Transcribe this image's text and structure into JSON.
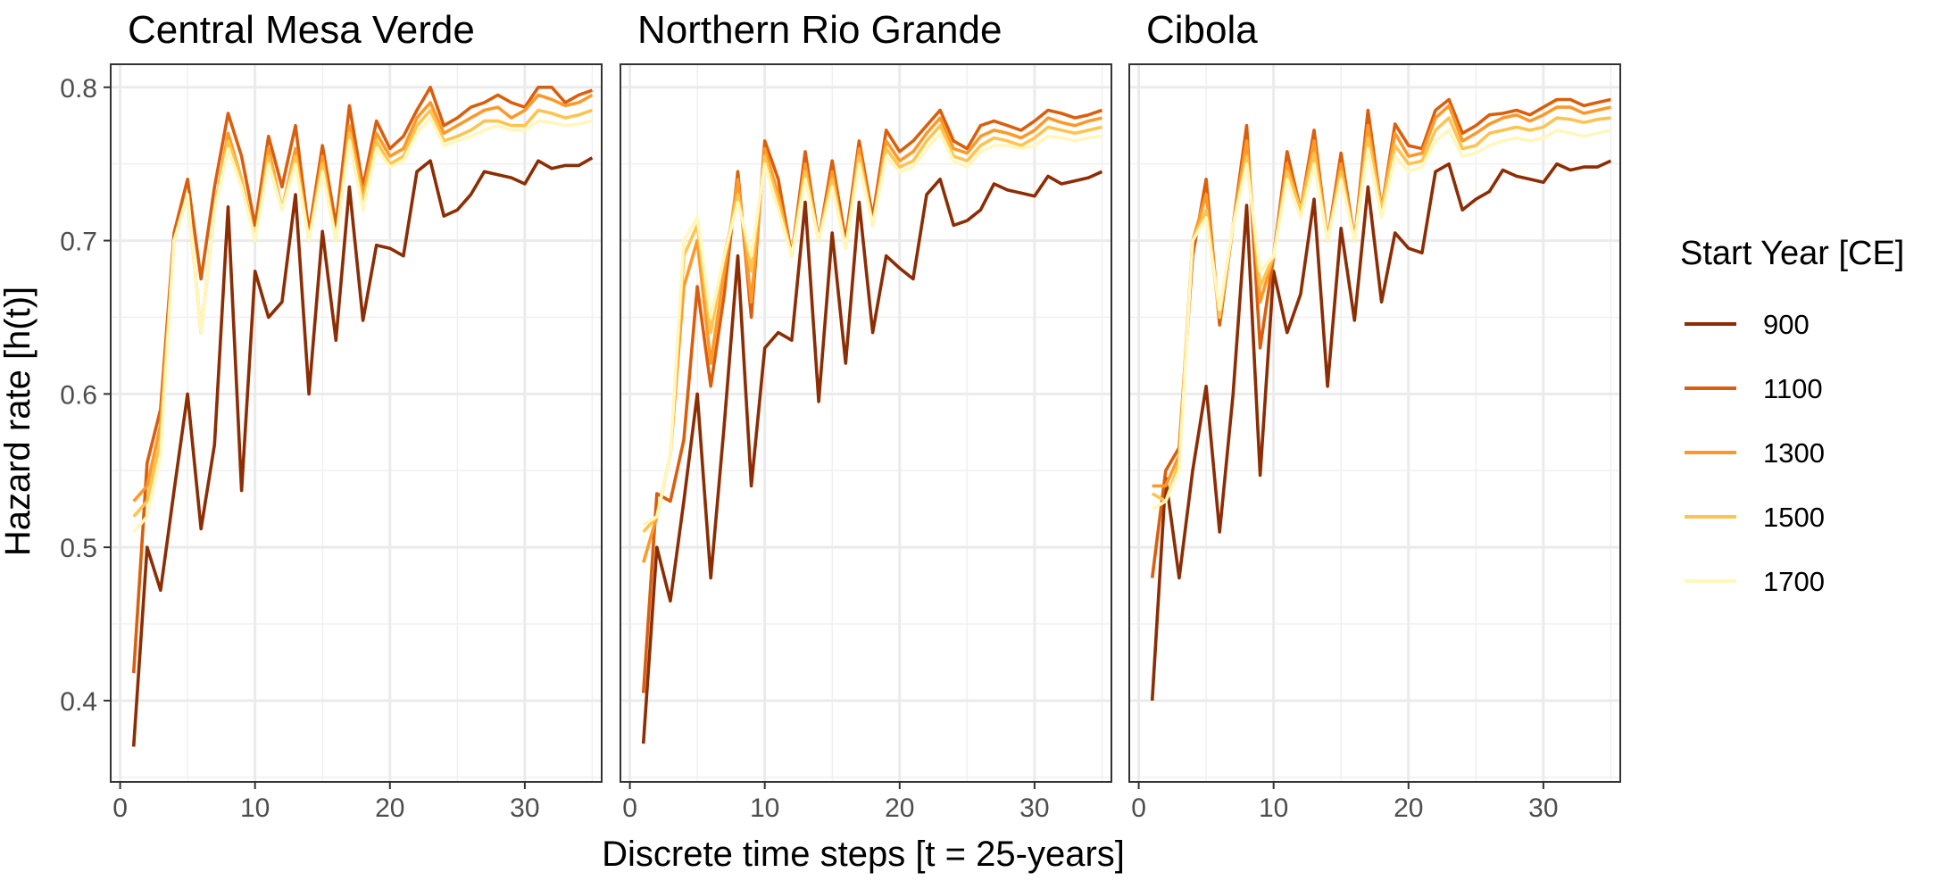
{
  "chart_data": {
    "type": "line",
    "xlabel": "Discrete time steps [t = 25-years]",
    "ylabel": "Hazard rate [h(t)]",
    "xlim": [
      -0.7,
      35.7
    ],
    "ylim": [
      0.347,
      0.815
    ],
    "x_ticks": [
      0,
      10,
      20,
      30
    ],
    "y_ticks": [
      0.4,
      0.5,
      0.6,
      0.7,
      0.8
    ],
    "x_tick_labels": [
      "0",
      "10",
      "20",
      "30"
    ],
    "y_tick_labels": [
      "0.4",
      "0.5",
      "0.6",
      "0.7",
      "0.8"
    ],
    "legend": {
      "title": "Start Year [CE]",
      "placement": "right",
      "entries": [
        {
          "label": "900",
          "color": "#8c2d04"
        },
        {
          "label": "1100",
          "color": "#d95f0e"
        },
        {
          "label": "1300",
          "color": "#fe9929"
        },
        {
          "label": "1500",
          "color": "#fec44f"
        },
        {
          "label": "1700",
          "color": "#fff7bc"
        }
      ]
    },
    "panels": [
      {
        "title": "Central Mesa Verde",
        "series": [
          {
            "name": "900",
            "values": [
              0.37,
              0.5,
              0.472,
              0.537,
              0.6,
              0.512,
              0.567,
              0.722,
              0.537,
              0.68,
              0.65,
              0.66,
              0.73,
              0.6,
              0.706,
              0.635,
              0.735,
              0.648,
              0.697,
              0.695,
              0.69,
              0.745,
              0.752,
              0.716,
              0.72,
              0.73,
              0.745,
              0.743,
              0.741,
              0.737,
              0.752,
              0.747,
              0.749,
              0.749,
              0.754
            ]
          },
          {
            "name": "1100",
            "values": [
              0.418,
              0.555,
              0.59,
              0.705,
              0.74,
              0.675,
              0.735,
              0.783,
              0.755,
              0.71,
              0.768,
              0.735,
              0.775,
              0.705,
              0.762,
              0.71,
              0.788,
              0.735,
              0.778,
              0.76,
              0.768,
              0.785,
              0.8,
              0.775,
              0.78,
              0.787,
              0.79,
              0.795,
              0.79,
              0.787,
              0.8,
              0.8,
              0.79,
              0.795,
              0.798
            ]
          },
          {
            "name": "1300",
            "values": [
              0.53,
              0.54,
              0.58,
              0.7,
              0.73,
              0.64,
              0.72,
              0.77,
              0.74,
              0.7,
              0.76,
              0.72,
              0.76,
              0.7,
              0.755,
              0.7,
              0.775,
              0.73,
              0.77,
              0.755,
              0.76,
              0.78,
              0.79,
              0.77,
              0.775,
              0.78,
              0.785,
              0.787,
              0.78,
              0.785,
              0.795,
              0.792,
              0.788,
              0.79,
              0.795
            ]
          },
          {
            "name": "1500",
            "values": [
              0.52,
              0.53,
              0.57,
              0.7,
              0.73,
              0.64,
              0.72,
              0.765,
              0.74,
              0.7,
              0.755,
              0.72,
              0.755,
              0.7,
              0.75,
              0.7,
              0.77,
              0.725,
              0.765,
              0.75,
              0.755,
              0.775,
              0.785,
              0.765,
              0.768,
              0.772,
              0.778,
              0.778,
              0.775,
              0.775,
              0.785,
              0.783,
              0.78,
              0.782,
              0.785
            ]
          },
          {
            "name": "1700",
            "values": [
              0.51,
              0.52,
              0.56,
              0.7,
              0.73,
              0.64,
              0.72,
              0.76,
              0.735,
              0.7,
              0.75,
              0.72,
              0.75,
              0.7,
              0.745,
              0.7,
              0.765,
              0.72,
              0.76,
              0.748,
              0.752,
              0.77,
              0.78,
              0.762,
              0.765,
              0.768,
              0.772,
              0.775,
              0.772,
              0.772,
              0.778,
              0.777,
              0.775,
              0.776,
              0.778
            ]
          }
        ]
      },
      {
        "title": "Northern Rio Grande",
        "series": [
          {
            "name": "900",
            "values": [
              0.372,
              0.5,
              0.465,
              0.53,
              0.6,
              0.48,
              0.58,
              0.69,
              0.54,
              0.63,
              0.64,
              0.635,
              0.725,
              0.595,
              0.705,
              0.62,
              0.725,
              0.64,
              0.69,
              0.682,
              0.675,
              0.73,
              0.74,
              0.71,
              0.713,
              0.72,
              0.737,
              0.733,
              0.731,
              0.729,
              0.742,
              0.737,
              0.739,
              0.741,
              0.745
            ]
          },
          {
            "name": "1100",
            "values": [
              0.405,
              0.535,
              0.53,
              0.57,
              0.67,
              0.605,
              0.665,
              0.745,
              0.65,
              0.765,
              0.74,
              0.69,
              0.758,
              0.7,
              0.752,
              0.7,
              0.765,
              0.715,
              0.772,
              0.758,
              0.765,
              0.775,
              0.785,
              0.765,
              0.76,
              0.775,
              0.778,
              0.775,
              0.772,
              0.778,
              0.785,
              0.783,
              0.78,
              0.782,
              0.785
            ]
          },
          {
            "name": "1300",
            "values": [
              0.49,
              0.52,
              0.56,
              0.67,
              0.7,
              0.62,
              0.68,
              0.74,
              0.66,
              0.76,
              0.73,
              0.69,
              0.75,
              0.7,
              0.745,
              0.695,
              0.76,
              0.71,
              0.765,
              0.752,
              0.758,
              0.77,
              0.78,
              0.76,
              0.757,
              0.768,
              0.772,
              0.77,
              0.767,
              0.772,
              0.78,
              0.777,
              0.775,
              0.778,
              0.78
            ]
          },
          {
            "name": "1500",
            "values": [
              0.51,
              0.52,
              0.56,
              0.69,
              0.71,
              0.64,
              0.69,
              0.73,
              0.68,
              0.755,
              0.725,
              0.69,
              0.745,
              0.7,
              0.74,
              0.695,
              0.755,
              0.71,
              0.76,
              0.748,
              0.752,
              0.765,
              0.775,
              0.755,
              0.752,
              0.762,
              0.767,
              0.765,
              0.762,
              0.767,
              0.774,
              0.772,
              0.77,
              0.772,
              0.774
            ]
          },
          {
            "name": "1700",
            "values": [
              0.515,
              0.52,
              0.56,
              0.7,
              0.715,
              0.65,
              0.69,
              0.725,
              0.69,
              0.75,
              0.72,
              0.69,
              0.74,
              0.7,
              0.735,
              0.695,
              0.75,
              0.71,
              0.755,
              0.745,
              0.748,
              0.76,
              0.77,
              0.752,
              0.748,
              0.758,
              0.762,
              0.762,
              0.76,
              0.762,
              0.768,
              0.767,
              0.765,
              0.767,
              0.768
            ]
          }
        ]
      },
      {
        "title": "Cibola",
        "series": [
          {
            "name": "900",
            "values": [
              0.4,
              0.545,
              0.48,
              0.55,
              0.605,
              0.51,
              0.6,
              0.723,
              0.547,
              0.68,
              0.64,
              0.665,
              0.727,
              0.605,
              0.708,
              0.648,
              0.735,
              0.66,
              0.705,
              0.695,
              0.692,
              0.745,
              0.75,
              0.72,
              0.727,
              0.732,
              0.746,
              0.742,
              0.74,
              0.738,
              0.75,
              0.746,
              0.748,
              0.748,
              0.752
            ]
          },
          {
            "name": "1100",
            "values": [
              0.48,
              0.55,
              0.565,
              0.69,
              0.74,
              0.645,
              0.71,
              0.775,
              0.63,
              0.69,
              0.758,
              0.72,
              0.772,
              0.7,
              0.757,
              0.7,
              0.785,
              0.72,
              0.776,
              0.762,
              0.76,
              0.785,
              0.792,
              0.77,
              0.775,
              0.782,
              0.783,
              0.785,
              0.782,
              0.787,
              0.792,
              0.792,
              0.788,
              0.79,
              0.792
            ]
          },
          {
            "name": "1300",
            "values": [
              0.54,
              0.54,
              0.56,
              0.7,
              0.73,
              0.65,
              0.71,
              0.765,
              0.66,
              0.69,
              0.75,
              0.72,
              0.765,
              0.7,
              0.75,
              0.7,
              0.775,
              0.72,
              0.77,
              0.755,
              0.757,
              0.78,
              0.788,
              0.765,
              0.77,
              0.776,
              0.78,
              0.782,
              0.778,
              0.782,
              0.787,
              0.787,
              0.783,
              0.785,
              0.787
            ]
          },
          {
            "name": "1500",
            "values": [
              0.535,
              0.53,
              0.555,
              0.7,
              0.72,
              0.65,
              0.71,
              0.755,
              0.67,
              0.69,
              0.745,
              0.72,
              0.757,
              0.7,
              0.745,
              0.7,
              0.767,
              0.72,
              0.762,
              0.75,
              0.752,
              0.772,
              0.78,
              0.76,
              0.762,
              0.77,
              0.772,
              0.774,
              0.772,
              0.774,
              0.78,
              0.779,
              0.777,
              0.779,
              0.78
            ]
          },
          {
            "name": "1700",
            "values": [
              0.525,
              0.53,
              0.55,
              0.7,
              0.715,
              0.655,
              0.71,
              0.75,
              0.68,
              0.69,
              0.74,
              0.715,
              0.75,
              0.7,
              0.74,
              0.7,
              0.76,
              0.715,
              0.755,
              0.745,
              0.748,
              0.765,
              0.772,
              0.755,
              0.757,
              0.762,
              0.765,
              0.767,
              0.765,
              0.767,
              0.772,
              0.77,
              0.768,
              0.77,
              0.772
            ]
          }
        ]
      }
    ]
  }
}
